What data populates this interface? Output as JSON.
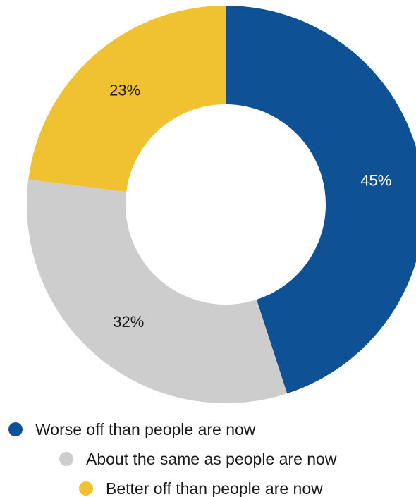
{
  "chart_data": {
    "type": "pie",
    "variant": "donut",
    "slices": [
      {
        "label": "Worse off than people are now",
        "value": 45,
        "display": "45%",
        "color": "#0e5195",
        "label_color": "#ffffff"
      },
      {
        "label": "About the same as people are now",
        "value": 32,
        "display": "32%",
        "color": "#cdcdcd",
        "label_color": "#1a1a1a"
      },
      {
        "label": "Better off than people are now",
        "value": 23,
        "display": "23%",
        "color": "#f0c130",
        "label_color": "#1a1a1a"
      }
    ],
    "legend_position": "bottom"
  }
}
